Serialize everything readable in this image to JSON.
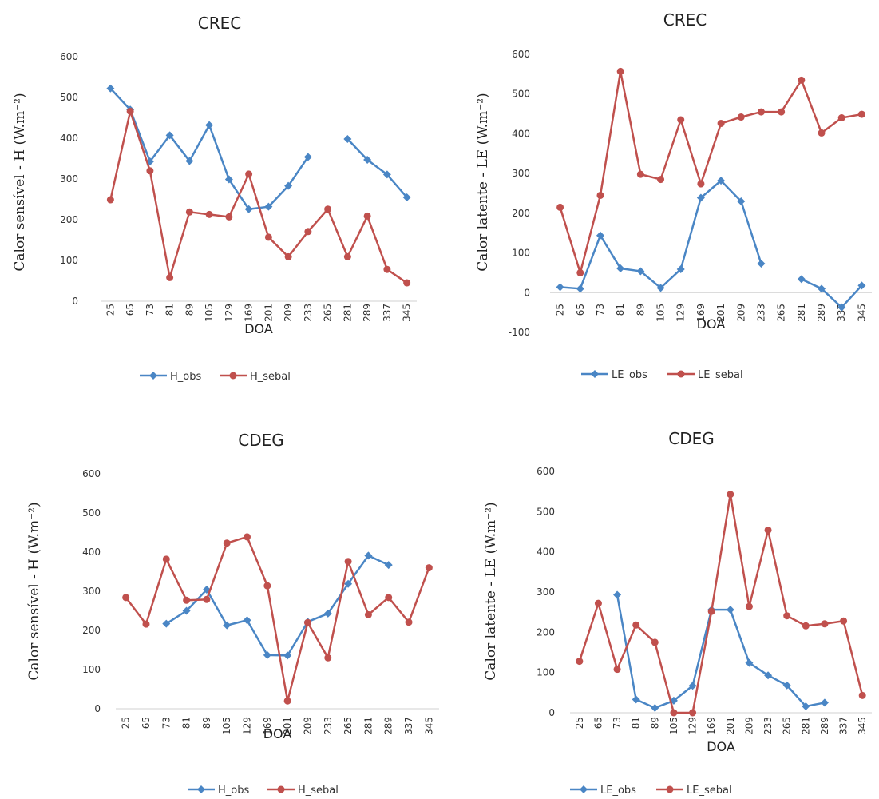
{
  "chart_data": [
    {
      "type": "line",
      "title": "CREC",
      "xlabel": "DOA",
      "ylabel": "Calor sensível - H (W.m⁻²)",
      "categories": [
        "25",
        "65",
        "73",
        "81",
        "89",
        "105",
        "129",
        "169",
        "201",
        "209",
        "233",
        "265",
        "281",
        "289",
        "337",
        "345"
      ],
      "ylim": [
        0,
        600
      ],
      "yticks": [
        "0",
        "100",
        "200",
        "300",
        "400",
        "500",
        "600"
      ],
      "grid": false,
      "legend": "bottom",
      "series": [
        {
          "name": "H_obs",
          "color": "#4a86c5",
          "marker": "diamond",
          "values": [
            522,
            470,
            343,
            407,
            344,
            432,
            299,
            226,
            232,
            283,
            354,
            null,
            398,
            347,
            311,
            255
          ]
        },
        {
          "name": "H_sebal",
          "color": "#c0504d",
          "marker": "circle",
          "values": [
            249,
            466,
            320,
            58,
            219,
            213,
            207,
            312,
            157,
            109,
            171,
            226,
            109,
            209,
            78,
            45
          ]
        }
      ]
    },
    {
      "type": "line",
      "title": "CREC",
      "xlabel": "DOA",
      "ylabel": "Calor latente - LE (W.m⁻²)",
      "categories": [
        "25",
        "65",
        "73",
        "81",
        "89",
        "105",
        "129",
        "169",
        "201",
        "209",
        "233",
        "265",
        "281",
        "289",
        "337",
        "345"
      ],
      "ylim": [
        -100,
        600
      ],
      "yticks": [
        "-100",
        "0",
        "100",
        "200",
        "300",
        "400",
        "500",
        "600"
      ],
      "grid": false,
      "legend": "bottom",
      "series": [
        {
          "name": "LE_obs",
          "color": "#4a86c5",
          "marker": "diamond",
          "values": [
            14,
            10,
            144,
            61,
            54,
            12,
            59,
            239,
            282,
            230,
            73,
            null,
            34,
            10,
            -37,
            18
          ]
        },
        {
          "name": "LE_sebal",
          "color": "#c0504d",
          "marker": "circle",
          "values": [
            215,
            50,
            245,
            557,
            298,
            285,
            435,
            274,
            426,
            442,
            455,
            455,
            535,
            402,
            440,
            449
          ]
        }
      ]
    },
    {
      "type": "line",
      "title": "CDEG",
      "xlabel": "DOA",
      "ylabel": "Calor sensível - H (W.m⁻²)",
      "categories": [
        "25",
        "65",
        "73",
        "81",
        "89",
        "105",
        "129",
        "169",
        "201",
        "209",
        "233",
        "265",
        "281",
        "289",
        "337",
        "345"
      ],
      "ylim": [
        0,
        600
      ],
      "yticks": [
        "0",
        "100",
        "200",
        "300",
        "400",
        "500",
        "600"
      ],
      "grid": false,
      "legend": "bottom",
      "series": [
        {
          "name": "H_obs",
          "color": "#4a86c5",
          "marker": "diamond",
          "values": [
            null,
            null,
            217,
            250,
            304,
            213,
            226,
            137,
            136,
            222,
            243,
            319,
            391,
            367,
            null,
            null
          ]
        },
        {
          "name": "H_sebal",
          "color": "#c0504d",
          "marker": "circle",
          "values": [
            284,
            216,
            382,
            277,
            279,
            423,
            439,
            314,
            20,
            220,
            130,
            376,
            240,
            284,
            221,
            360
          ]
        }
      ]
    },
    {
      "type": "line",
      "title": "CDEG",
      "xlabel": "DOA",
      "ylabel": "Calor latente - LE (W.m⁻²)",
      "categories": [
        "25",
        "65",
        "73",
        "81",
        "89",
        "105",
        "129",
        "169",
        "201",
        "209",
        "233",
        "265",
        "281",
        "289",
        "337",
        "345"
      ],
      "ylim": [
        0,
        600
      ],
      "yticks": [
        "0",
        "100",
        "200",
        "300",
        "400",
        "500",
        "600"
      ],
      "grid": false,
      "legend": "bottom",
      "series": [
        {
          "name": "LE_obs",
          "color": "#4a86c5",
          "marker": "diamond",
          "values": [
            null,
            null,
            293,
            33,
            12,
            30,
            67,
            256,
            256,
            124,
            93,
            68,
            16,
            25,
            null,
            null
          ]
        },
        {
          "name": "LE_sebal",
          "color": "#c0504d",
          "marker": "circle",
          "values": [
            128,
            272,
            108,
            218,
            175,
            0,
            0,
            252,
            543,
            264,
            454,
            241,
            216,
            221,
            228,
            43
          ]
        }
      ]
    }
  ]
}
